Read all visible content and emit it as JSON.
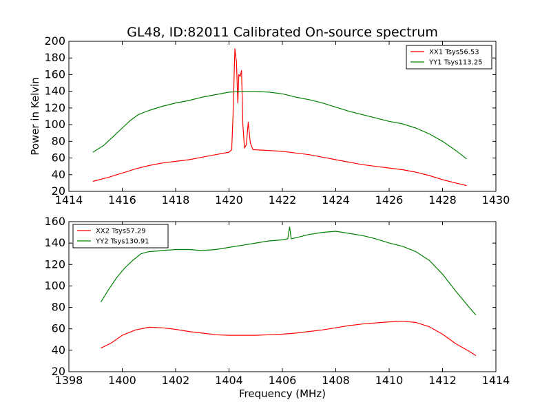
{
  "chart_data": [
    {
      "type": "line",
      "title": "GL48, ID:82011 Calibrated On-source spectrum",
      "xlabel": "",
      "ylabel": "Power in Kelvin",
      "xlim": [
        1414,
        1430
      ],
      "ylim": [
        20,
        200
      ],
      "xticks": [
        1414,
        1416,
        1418,
        1420,
        1422,
        1424,
        1426,
        1428,
        1430
      ],
      "yticks": [
        20,
        40,
        60,
        80,
        100,
        120,
        140,
        160,
        180,
        200
      ],
      "grid": false,
      "legend_position": "top-right",
      "series": [
        {
          "name": "XX1 Tsys56.53",
          "color": "#ff0000",
          "points": [
            [
              1414.9,
              32
            ],
            [
              1415.5,
              37
            ],
            [
              1416.0,
              42
            ],
            [
              1416.5,
              47
            ],
            [
              1417.0,
              51
            ],
            [
              1417.5,
              54
            ],
            [
              1418.0,
              56
            ],
            [
              1418.5,
              58
            ],
            [
              1419.0,
              61
            ],
            [
              1419.5,
              64
            ],
            [
              1420.0,
              67
            ],
            [
              1420.1,
              70
            ],
            [
              1420.15,
              110
            ],
            [
              1420.22,
              191
            ],
            [
              1420.28,
              175
            ],
            [
              1420.33,
              126
            ],
            [
              1420.37,
              160
            ],
            [
              1420.42,
              158
            ],
            [
              1420.47,
              165
            ],
            [
              1420.52,
              100
            ],
            [
              1420.58,
              72
            ],
            [
              1420.65,
              76
            ],
            [
              1420.72,
              103
            ],
            [
              1420.8,
              78
            ],
            [
              1420.9,
              70
            ],
            [
              1421.5,
              69
            ],
            [
              1422.0,
              68
            ],
            [
              1422.5,
              66
            ],
            [
              1423.0,
              64
            ],
            [
              1423.5,
              61
            ],
            [
              1424.0,
              58
            ],
            [
              1424.5,
              55
            ],
            [
              1425.0,
              52
            ],
            [
              1425.5,
              50
            ],
            [
              1426.0,
              48
            ],
            [
              1426.5,
              46
            ],
            [
              1427.0,
              43
            ],
            [
              1427.5,
              39
            ],
            [
              1428.0,
              34
            ],
            [
              1428.5,
              30
            ],
            [
              1428.9,
              27
            ]
          ]
        },
        {
          "name": "YY1 Tsys113.25",
          "color": "#008000",
          "points": [
            [
              1414.9,
              67
            ],
            [
              1415.3,
              75
            ],
            [
              1415.7,
              87
            ],
            [
              1416.0,
              96
            ],
            [
              1416.3,
              105
            ],
            [
              1416.6,
              112
            ],
            [
              1417.0,
              117
            ],
            [
              1417.5,
              122
            ],
            [
              1418.0,
              126
            ],
            [
              1418.5,
              129
            ],
            [
              1419.0,
              133
            ],
            [
              1419.5,
              136
            ],
            [
              1420.0,
              139
            ],
            [
              1420.5,
              140
            ],
            [
              1421.0,
              140
            ],
            [
              1421.5,
              139
            ],
            [
              1422.0,
              137
            ],
            [
              1422.5,
              133
            ],
            [
              1423.0,
              130
            ],
            [
              1423.5,
              126
            ],
            [
              1424.0,
              121
            ],
            [
              1424.5,
              116
            ],
            [
              1425.0,
              112
            ],
            [
              1425.5,
              108
            ],
            [
              1426.0,
              104
            ],
            [
              1426.5,
              101
            ],
            [
              1427.0,
              96
            ],
            [
              1427.5,
              89
            ],
            [
              1428.0,
              80
            ],
            [
              1428.5,
              69
            ],
            [
              1428.9,
              59
            ]
          ]
        }
      ]
    },
    {
      "type": "line",
      "title": "",
      "xlabel": "Frequency (MHz)",
      "ylabel": "",
      "xlim": [
        1398,
        1414
      ],
      "ylim": [
        20,
        160
      ],
      "xticks": [
        1398,
        1400,
        1402,
        1404,
        1406,
        1408,
        1410,
        1412,
        1414
      ],
      "yticks": [
        20,
        40,
        60,
        80,
        100,
        120,
        140,
        160
      ],
      "grid": false,
      "legend_position": "top-left",
      "series": [
        {
          "name": "XX2 Tsys57.29",
          "color": "#ff0000",
          "points": [
            [
              1399.2,
              42
            ],
            [
              1399.6,
              47
            ],
            [
              1400.0,
              54
            ],
            [
              1400.5,
              59
            ],
            [
              1401.0,
              61.5
            ],
            [
              1401.5,
              61
            ],
            [
              1402.0,
              59.5
            ],
            [
              1402.5,
              57.5
            ],
            [
              1403.0,
              56
            ],
            [
              1403.5,
              54.5
            ],
            [
              1404.0,
              54
            ],
            [
              1404.5,
              54
            ],
            [
              1405.0,
              54
            ],
            [
              1405.5,
              54.5
            ],
            [
              1406.0,
              55
            ],
            [
              1406.5,
              56
            ],
            [
              1407.0,
              57.5
            ],
            [
              1407.5,
              59
            ],
            [
              1408.0,
              61
            ],
            [
              1408.5,
              63
            ],
            [
              1409.0,
              64.5
            ],
            [
              1409.5,
              65.5
            ],
            [
              1410.0,
              66.5
            ],
            [
              1410.5,
              67
            ],
            [
              1411.0,
              66
            ],
            [
              1411.5,
              62
            ],
            [
              1412.0,
              55
            ],
            [
              1412.5,
              46
            ],
            [
              1413.0,
              39
            ],
            [
              1413.25,
              35
            ]
          ]
        },
        {
          "name": "YY2 Tsys130.91",
          "color": "#008000",
          "points": [
            [
              1399.2,
              85
            ],
            [
              1399.5,
              97
            ],
            [
              1399.8,
              108
            ],
            [
              1400.1,
              117
            ],
            [
              1400.4,
              124
            ],
            [
              1400.7,
              130
            ],
            [
              1401.0,
              132
            ],
            [
              1401.5,
              133
            ],
            [
              1402.0,
              134
            ],
            [
              1402.5,
              134
            ],
            [
              1403.0,
              133
            ],
            [
              1403.5,
              134
            ],
            [
              1404.0,
              136
            ],
            [
              1404.5,
              138
            ],
            [
              1405.0,
              140
            ],
            [
              1405.5,
              142
            ],
            [
              1406.0,
              143
            ],
            [
              1406.2,
              144
            ],
            [
              1406.27,
              155
            ],
            [
              1406.33,
              144
            ],
            [
              1406.5,
              145
            ],
            [
              1407.0,
              148
            ],
            [
              1407.5,
              150
            ],
            [
              1408.0,
              151
            ],
            [
              1408.5,
              149
            ],
            [
              1409.0,
              147
            ],
            [
              1409.5,
              144
            ],
            [
              1410.0,
              140
            ],
            [
              1410.5,
              137
            ],
            [
              1411.0,
              132
            ],
            [
              1411.5,
              124
            ],
            [
              1412.0,
              111
            ],
            [
              1412.5,
              95
            ],
            [
              1413.0,
              80
            ],
            [
              1413.25,
              73
            ]
          ]
        }
      ]
    }
  ]
}
